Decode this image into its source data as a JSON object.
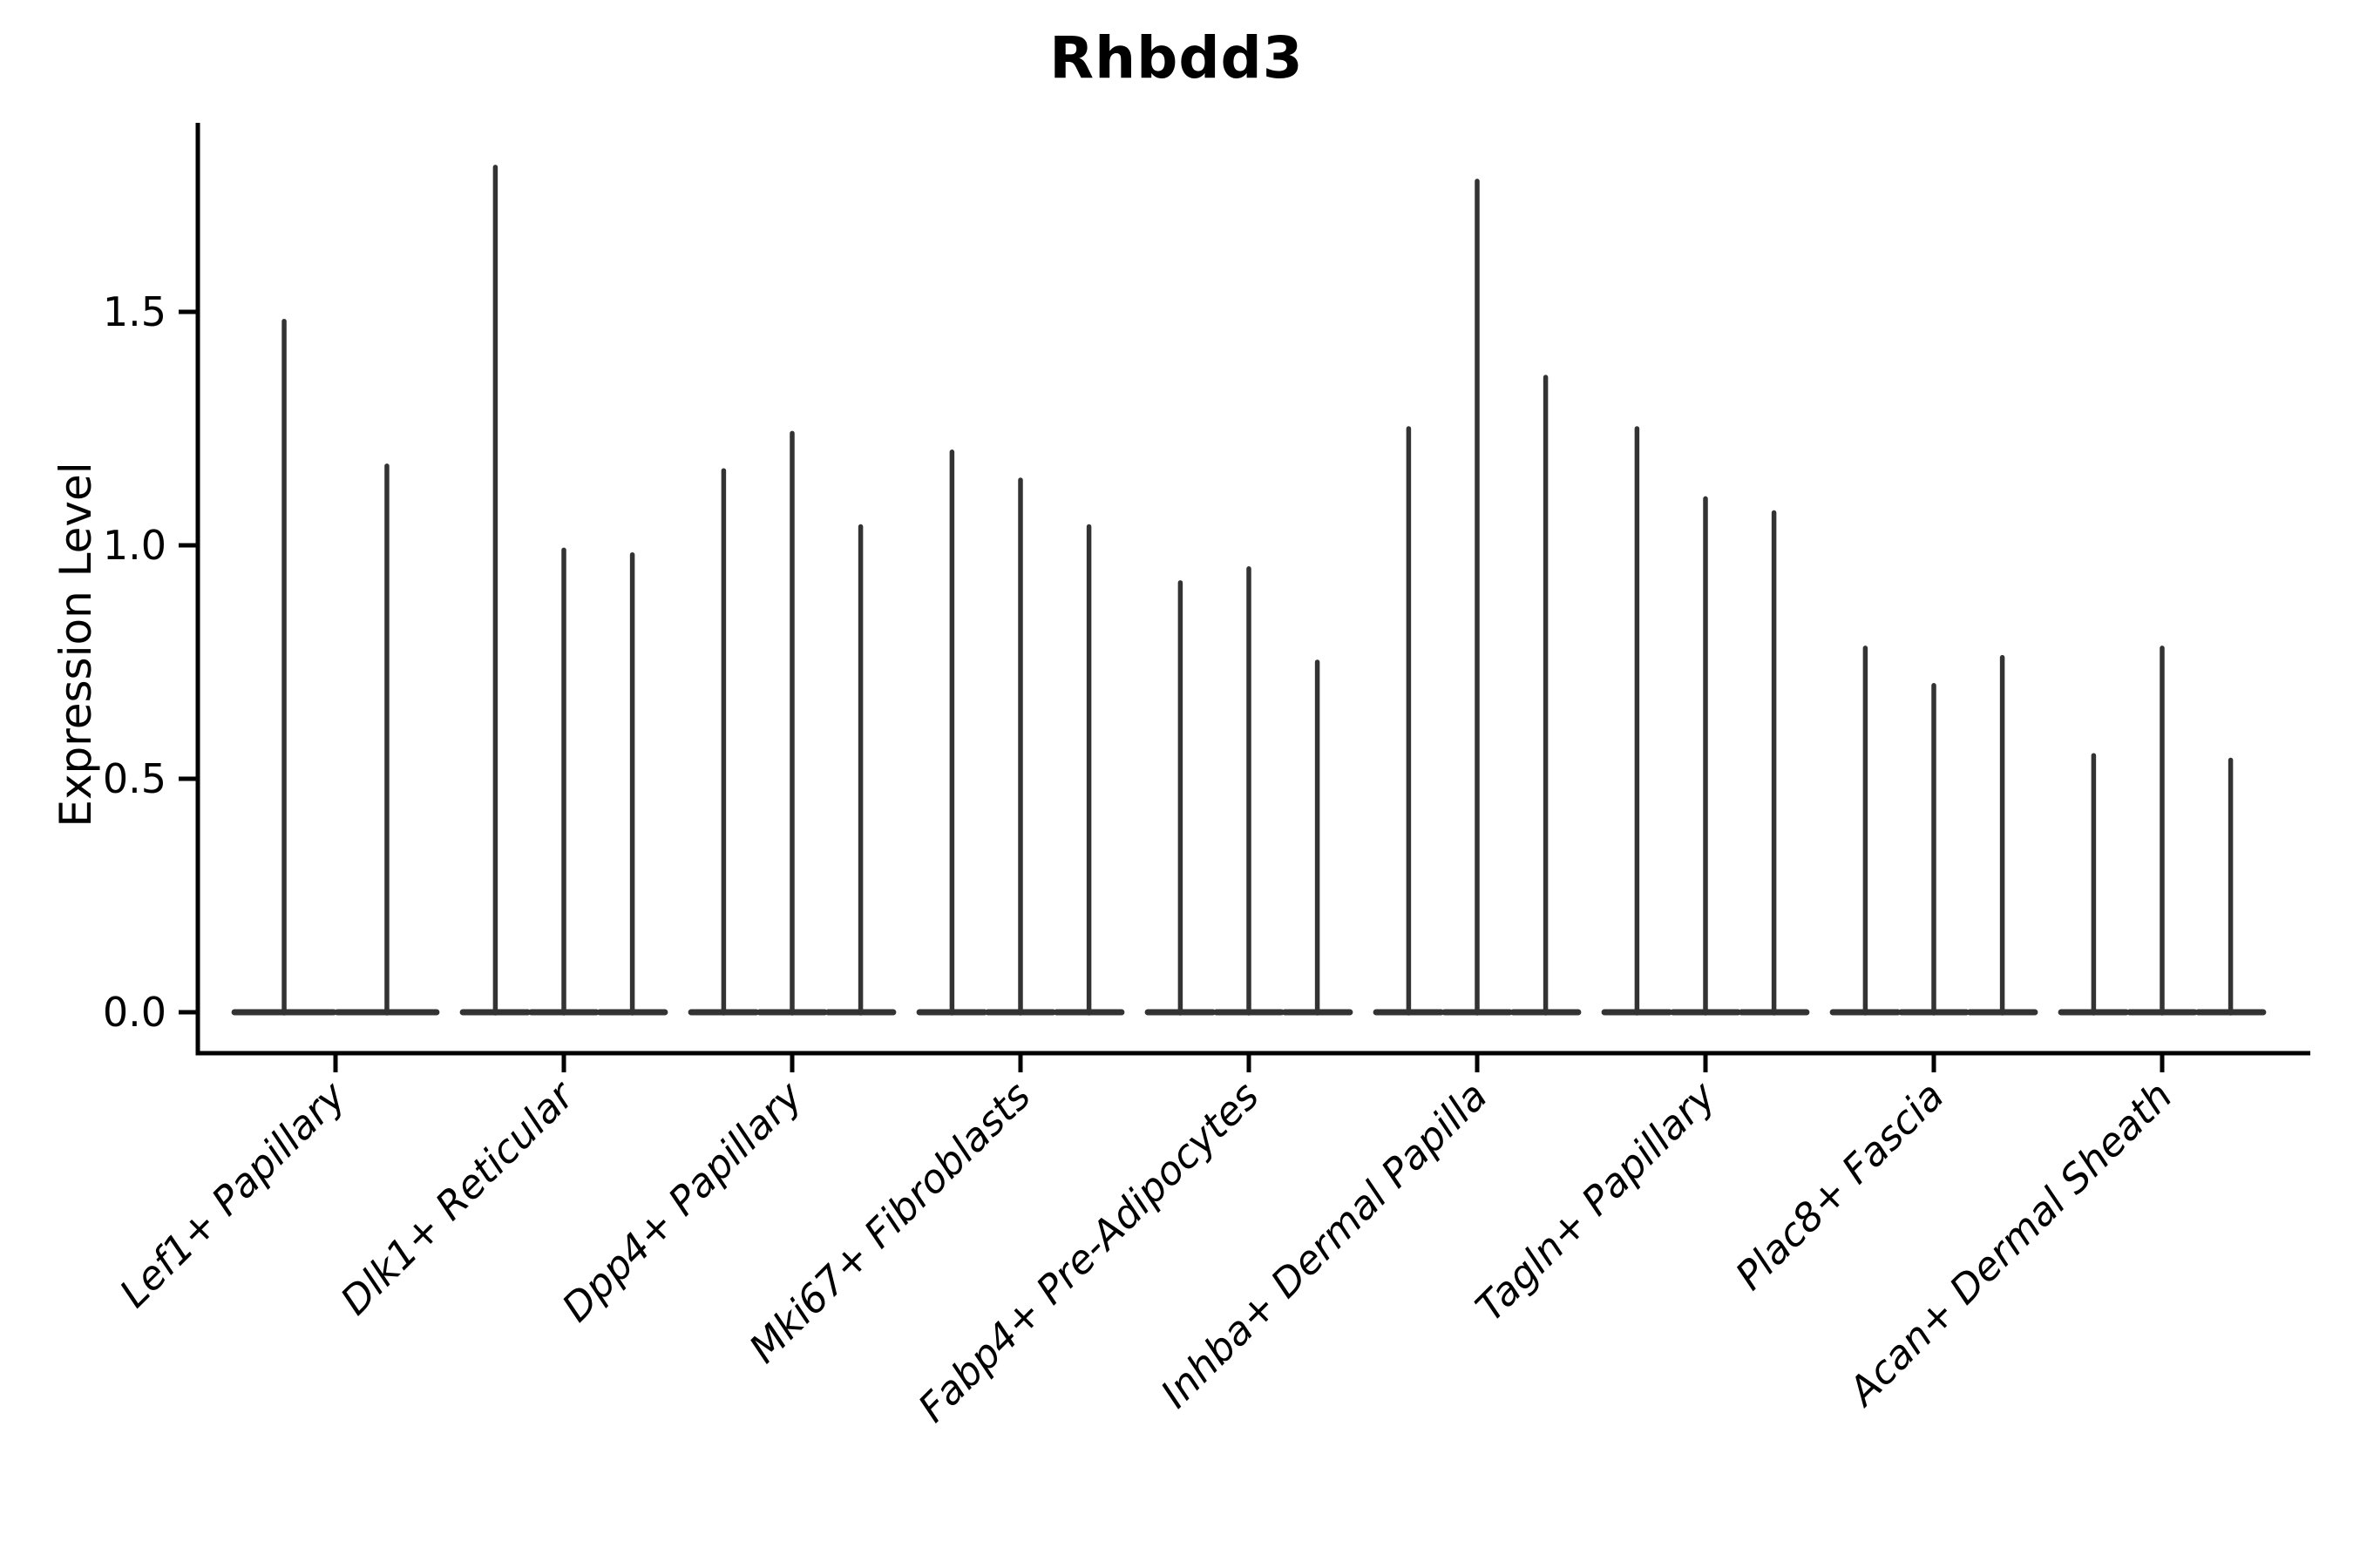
{
  "title": "Rhbdd3",
  "axes": {
    "ylabel": "Expression Level",
    "ytick_labels": [
      "0.0",
      "0.5",
      "1.0",
      "1.5"
    ]
  },
  "chart_data": {
    "type": "violin",
    "title": "Rhbdd3",
    "xlabel": "",
    "ylabel": "Expression Level",
    "ylim": [
      -0.09,
      1.9
    ],
    "ytick_values": [
      0.0,
      0.5,
      1.0,
      1.5
    ],
    "grid": false,
    "legend": "none",
    "categories": [
      "Lef1+ Papillary",
      "Dlk1+ Reticular",
      "Dpp4+ Papillary",
      "Mki67+ Fibroblasts",
      "Fabp4+ Pre-Adipocytes",
      "Inhba+ Dermal Papilla",
      "Tagln+ Papillary",
      "Plac8+ Fascia",
      "Acan+ Dermal Sheath"
    ],
    "series": [
      {
        "category": "Lef1+ Papillary",
        "spike_heights": [
          1.48,
          1.17
        ]
      },
      {
        "category": "Dlk1+ Reticular",
        "spike_heights": [
          1.81,
          0.99,
          0.98
        ]
      },
      {
        "category": "Dpp4+ Papillary",
        "spike_heights": [
          1.16,
          1.24,
          1.04
        ]
      },
      {
        "category": "Mki67+ Fibroblasts",
        "spike_heights": [
          1.2,
          1.14,
          1.04
        ]
      },
      {
        "category": "Fabp4+ Pre-Adipocytes",
        "spike_heights": [
          0.92,
          0.95,
          0.75
        ]
      },
      {
        "category": "Inhba+ Dermal Papilla",
        "spike_heights": [
          1.25,
          1.78,
          1.36
        ]
      },
      {
        "category": "Tagln+ Papillary",
        "spike_heights": [
          1.25,
          1.1,
          1.07
        ]
      },
      {
        "category": "Plac8+ Fascia",
        "spike_heights": [
          0.78,
          0.7,
          0.76
        ]
      },
      {
        "category": "Acan+ Dermal Sheath",
        "spike_heights": [
          0.55,
          0.78,
          0.54
        ]
      }
    ],
    "violin_description": "Each category holds 2-3 sample violins; expression mass sits at 0 (flat base) with a thin density spike rising to spike_height.",
    "group_width_fraction": 0.9,
    "colors": {
      "violin_line": "#333333",
      "axis_spine": "#000000",
      "text": "#000000",
      "background": "#ffffff"
    }
  }
}
